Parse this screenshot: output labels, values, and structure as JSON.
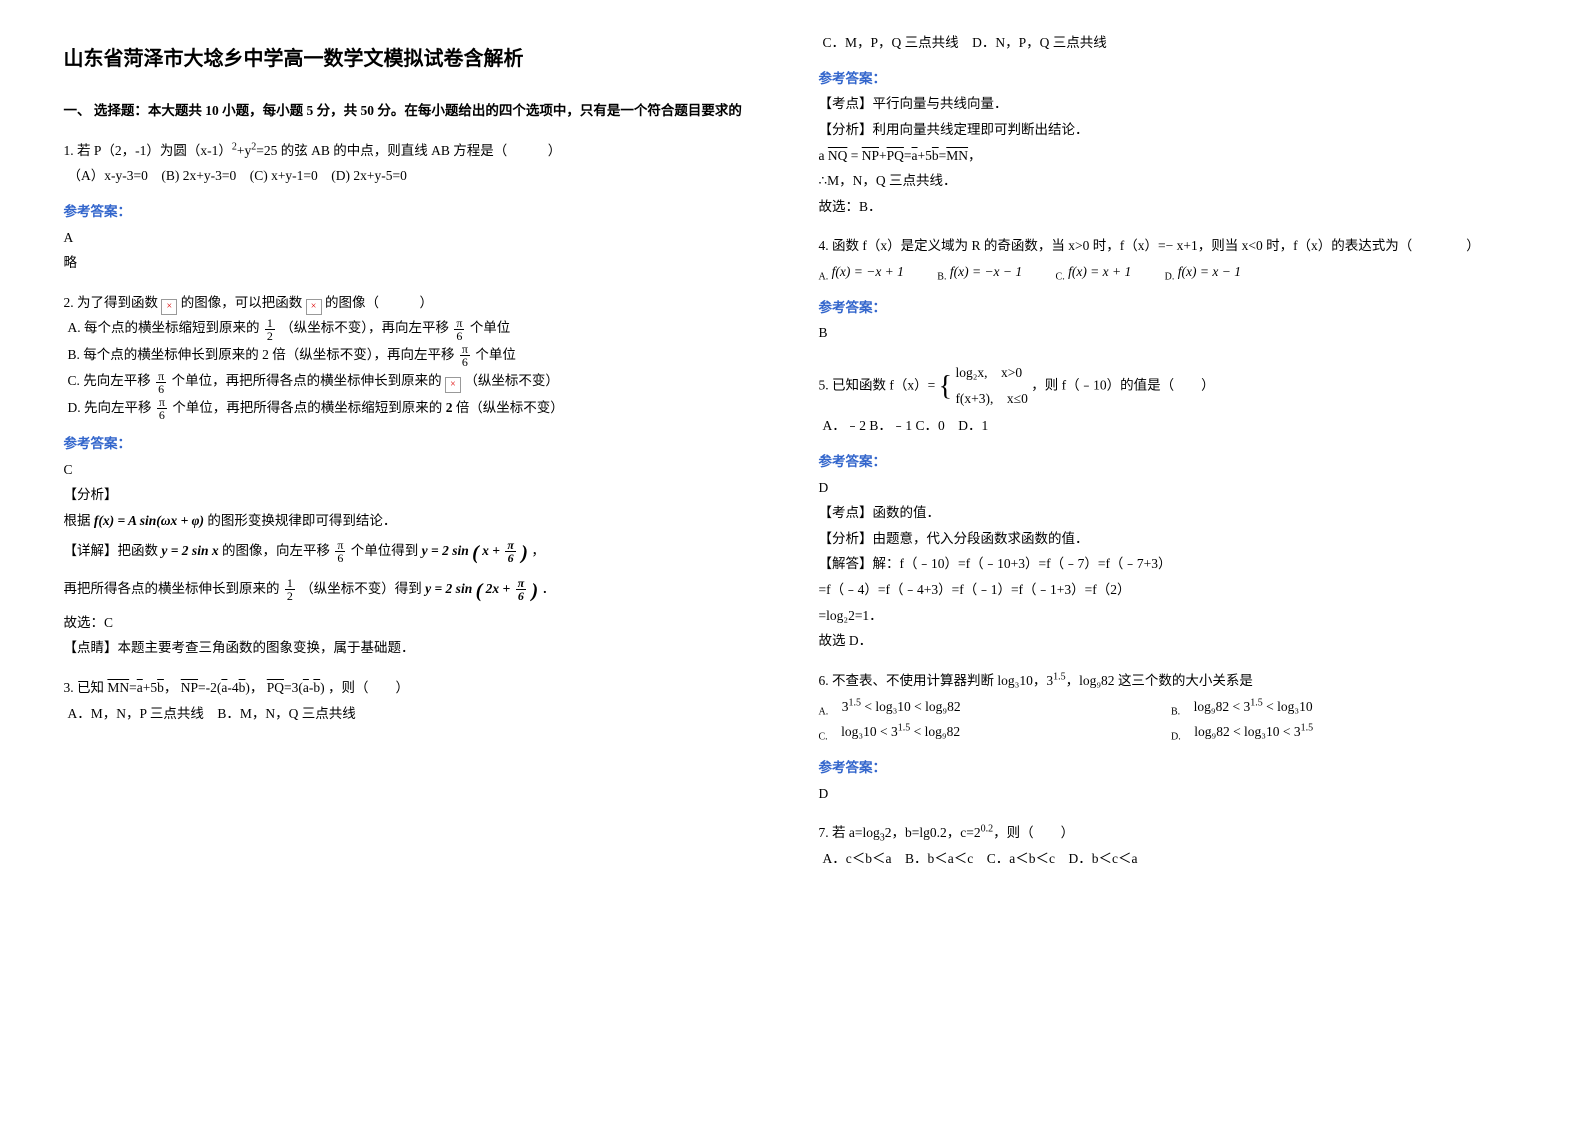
{
  "title": "山东省菏泽市大埝乡中学高一数学文模拟试卷含解析",
  "sec1_head": "一、 选择题：本大题共 10 小题，每小题 5 分，共 50 分。在每小题给出的四个选项中，只有是一个符合题目要求的",
  "q1_stem_a": "1. 若 P（2，-1）为圆（x-1）",
  "q1_stem_b": "+y",
  "q1_stem_c": "=25 的弦 AB 的中点，则直线 AB 方程是（　　　）",
  "q1_opts": "（A）x-y-3=0　(B) 2x+y-3=0　(C) x+y-1=0　(D) 2x+y-5=0",
  "q1_ans_label": "参考答案：",
  "q1_ans": "A",
  "q1_expl": "略",
  "q2_stem_a": "2. 为了得到函数 ",
  "q2_stem_b": " 的图像，可以把函数 ",
  "q2_stem_c": " 的图像（　　　）",
  "q2_icon": "×",
  "q2_A_a": "A. 每个点的横坐标缩短到原来的",
  "q2_A_num": "1",
  "q2_A_den": "2",
  "q2_A_b": "（纵坐标不变），再向左平移",
  "q2_A_num2": "π",
  "q2_A_den2": "6",
  "q2_A_c": "个单位",
  "q2_B_a": "B. 每个点的横坐标伸长到原来的 2 倍（纵坐标不变），再向左平移",
  "q2_B_num": "π",
  "q2_B_den": "6",
  "q2_B_b": "个单位",
  "q2_C_a": "C. 先向左平移",
  "q2_C_num": "π",
  "q2_C_den": "6",
  "q2_C_b": "个单位，再把所得各点的横坐标伸长到原来的 ",
  "q2_C_c": " （纵坐标不变）",
  "q2_D_a": "D. 先向左平移",
  "q2_D_num": "π",
  "q2_D_den": "6",
  "q2_D_b": "个单位，再把所得各点的横坐标缩短到原来的",
  "q2_D_c": "倍（纵坐标不变）",
  "q2_D_two": "2",
  "q2_ans_label": "参考答案：",
  "q2_ans": "C",
  "q2_anal": "【分析】",
  "q2_anal1_a": "根据",
  "q2_anal1_formula": "f(x) = A sin(ωx + φ)",
  "q2_anal1_b": "的图形变换规律即可得到结论．",
  "q2_det_a": "【详解】把函数",
  "q2_det_f1": "y = 2 sin x",
  "q2_det_b": "的图像，向左平移",
  "q2_det_num": "π",
  "q2_det_den": "6",
  "q2_det_c": "个单位得到",
  "q2_det_f2_a": "y = 2 sin",
  "q2_det_f2_lp": "(",
  "q2_det_f2_in_a": "x + ",
  "q2_det_f2_num": "π",
  "q2_det_f2_den": "6",
  "q2_det_f2_rp": ")",
  "q2_det_comma": "，",
  "q2_det2_a": "再把所得各点的横坐标伸长到原来的",
  "q2_det2_num": "1",
  "q2_det2_den": "2",
  "q2_det2_b": "（纵坐标不变）得到",
  "q2_det2_f_a": "y = 2 sin",
  "q2_det2_lp": "(",
  "q2_det2_in": "2x + ",
  "q2_det2_fnum": "π",
  "q2_det2_fden": "6",
  "q2_det2_rp": ")",
  "q2_det2_period": "．",
  "q2_sel": "故选：C",
  "q2_ps": "【点睛】本题主要考查三角函数的图象变换，属于基础题．",
  "q3_stem_a": "3. 已知",
  "q3_MN": "MN",
  "q3_eq1": "=",
  "q3_a": "a",
  "q3_plus": "+5",
  "q3_b": "b",
  "q3_c1": "，",
  "q3_NP": "NP",
  "q3_eq2": "=-2(",
  "q3_a2": "a",
  "q3_m": "-4",
  "q3_b2": "b",
  "q3_rp1": ")",
  "q3_c2": "，",
  "q3_PQ": "PQ",
  "q3_eq3": "=3(",
  "q3_a3": "a",
  "q3_m2": "-",
  "q3_b3": "b",
  "q3_rp2": ")",
  "q3_stem_b": "，则（　　）",
  "q3_AB": "A．M，N，P 三点共线　B．M，N，Q 三点共线",
  "q3_CD": "C．M，P，Q 三点共线　D．N，P，Q 三点共线",
  "q3_ans_label": "参考答案：",
  "q3_kd": "【考点】平行向量与共线向量．",
  "q3_fx": "【分析】利用向量共线定理即可判断出结论．",
  "q3_jd_a": "a",
  "q3_jd_NQ": "NQ",
  "q3_jd_eq": " = ",
  "q3_jd_NP": "NP",
  "q3_jd_p1": "+",
  "q3_jd_PQ": "PQ",
  "q3_jd_eq2": "=",
  "q3_jd_p2": "+5",
  "q3_jd_b": "b",
  "q3_jd_eq3": "=",
  "q3_jd_MN": "MN",
  "q3_jd_period": "，",
  "q3_so": "∴M，N，Q 三点共线．",
  "q3_pick": "故选：B．",
  "q4_stem": "4. 函数 f（x）是定义域为 R 的奇函数，当 x>0 时，f（x）=− x+1，则当 x<0 时，f（x）的表达式为（　　　　）",
  "q4_A": "f(x) = −x + 1",
  "q4_B": "f(x) = −x − 1",
  "q4_C": "f(x) = x + 1",
  "q4_D": "f(x) = x − 1",
  "q4_Al": "A.",
  "q4_Bl": "B.",
  "q4_Cl": "C.",
  "q4_Dl": "D.",
  "q4_ans_label": "参考答案：",
  "q4_ans": "B",
  "q5_stem_a": "5. 已知函数 f（x）=",
  "q5_p1": "log₂x,　x>0",
  "q5_p2": "f(x+3),　x≤0",
  "q5_brace": "{",
  "q5_stem_b": "，则 f（﹣10）的值是（　　）",
  "q5_opts": "A．﹣2 B．﹣1 C．0　D．1",
  "q5_ans_label": "参考答案：",
  "q5_ans": "D",
  "q5_kd": "【考点】函数的值．",
  "q5_fx": "【分析】由题意，代入分段函数求函数的值．",
  "q5_jd1": "【解答】解：f（﹣10）=f（﹣10+3）=f（﹣7）=f（﹣7+3）",
  "q5_jd2": "=f（﹣4）=f（﹣4+3）=f（﹣1）=f（﹣1+3）=f（2）",
  "q5_jd3": "=log₂2=1．",
  "q5_pick": "故选 D．",
  "q6_stem_a": "6. 不查表、不使用计算器判断",
  "q6_t1": "log₃10",
  "q6_c1": "，",
  "q6_t2": "3",
  "q6_t2e": "1.5",
  "q6_c2": "，",
  "q6_t3": "log₉82",
  "q6_stem_b": "这三个数的大小关系是",
  "q6_A_a": "3",
  "q6_A_ae": "1.5",
  "q6_A_b": " < log₃10 < log₉82",
  "q6_B_a": "log₉82 < 3",
  "q6_B_ae": "1.5",
  "q6_B_b": " < log₃10",
  "q6_C_a": "log₃10 < 3",
  "q6_C_ae": "1.5",
  "q6_C_b": " < log₉82",
  "q6_D_a": "log₉82 < log₃10 < 3",
  "q6_D_ae": "1.5",
  "q6_Al": "A.",
  "q6_Bl": "B.",
  "q6_Cl": "C.",
  "q6_Dl": "D.",
  "q6_ans_label": "参考答案：",
  "q6_ans": "D",
  "q7_stem_a": "7. 若 a=log",
  "q7_sub": "3",
  "q7_stem_b": "2，b=lg0.2，c=2",
  "q7_sup": "0.2",
  "q7_stem_c": "，则（　　）",
  "q7_opts": "A．c＜b＜a　B．b＜a＜c　C．a＜b＜c　D．b＜c＜a"
}
